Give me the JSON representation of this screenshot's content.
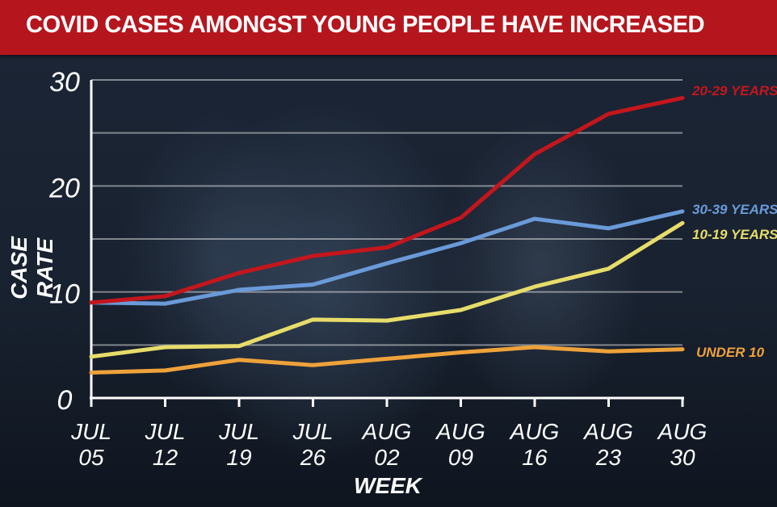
{
  "title": "COVID CASES AMONGST YOUNG PEOPLE HAVE INCREASED",
  "chart_data": {
    "type": "line",
    "xlabel": "WEEK",
    "ylabel": "CASE RATE",
    "ylim": [
      0,
      30
    ],
    "yticks": [
      0,
      10,
      20,
      30
    ],
    "gridlines": [
      5,
      10,
      15,
      20,
      25,
      30
    ],
    "grid": true,
    "legend": "labels at right end of each line",
    "categories": [
      [
        "JUL",
        "05"
      ],
      [
        "JUL",
        "12"
      ],
      [
        "JUL",
        "19"
      ],
      [
        "JUL",
        "26"
      ],
      [
        "AUG",
        "02"
      ],
      [
        "AUG",
        "09"
      ],
      [
        "AUG",
        "16"
      ],
      [
        "AUG",
        "23"
      ],
      [
        "AUG",
        "30"
      ]
    ],
    "series": [
      {
        "name": "20-29 YEARS",
        "color": "#c4161c",
        "values": [
          9.0,
          9.6,
          11.8,
          13.4,
          14.2,
          17.0,
          23.0,
          26.8,
          28.3
        ]
      },
      {
        "name": "30-39 YEARS",
        "color": "#6a9ad8",
        "values": [
          9.0,
          8.9,
          10.2,
          10.7,
          12.7,
          14.6,
          16.9,
          16.0,
          17.6
        ]
      },
      {
        "name": "10-19 YEARS",
        "color": "#e6dc6a",
        "values": [
          3.9,
          4.8,
          4.9,
          7.4,
          7.3,
          8.3,
          10.5,
          12.2,
          16.5
        ]
      },
      {
        "name": "UNDER 10",
        "color": "#eea23a",
        "values": [
          2.4,
          2.6,
          3.6,
          3.1,
          3.7,
          4.3,
          4.8,
          4.4,
          4.6
        ]
      }
    ]
  }
}
